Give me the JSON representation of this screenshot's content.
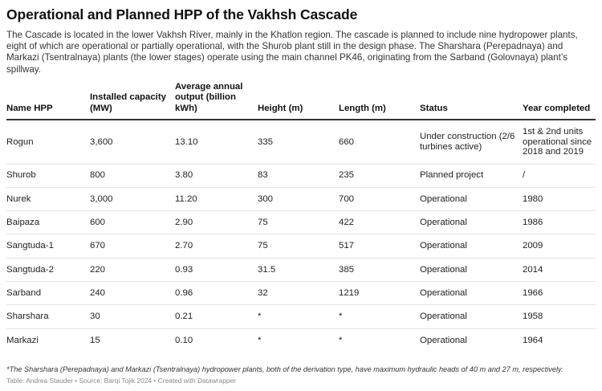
{
  "title": "Operational and Planned HPP of the Vakhsh Cascade",
  "description": "The Cascade is located in the lower Vakhsh River, mainly in the Khatlon region. The cascade is planned to include nine hydropower plants, eight of which are operational or partially operational, with the Shurob plant still in the design phase. The Sharshara (Perepadnaya) and Markazi (Tsentralnaya) plants (the lower stages) operate using the main channel PK46, originating from the Sarband (Golovnaya) plant’s spillway.",
  "columns": [
    "Name HPP",
    "Installed capacity (MW)",
    "Average annual output (billion kWh)",
    "Height (m)",
    "Length (m)",
    "Status",
    "Year completed"
  ],
  "rows": [
    [
      "Rogun",
      "3,600",
      "13.10",
      "335",
      "660",
      "Under construction (2/6 turbines active)",
      "1st & 2nd units operational since 2018 and 2019"
    ],
    [
      "Shurob",
      "800",
      "3.80",
      "83",
      "235",
      "Planned project",
      "/"
    ],
    [
      "Nurek",
      "3,000",
      "11.20",
      "300",
      "700",
      "Operational",
      "1980"
    ],
    [
      "Baipaza",
      "600",
      "2.90",
      "75",
      "422",
      "Operational",
      "1986"
    ],
    [
      "Sangtuda-1",
      "670",
      "2.70",
      "75",
      "517",
      "Operational",
      "2009"
    ],
    [
      "Sangtuda-2",
      "220",
      "0.93",
      "31.5",
      "385",
      "Operational",
      "2014"
    ],
    [
      "Sarband",
      "240",
      "0.96",
      "32",
      "1219",
      "Operational",
      "1966"
    ],
    [
      "Sharshara",
      "30",
      "0.21",
      "*",
      "*",
      "Operational",
      "1958"
    ],
    [
      "Markazi",
      "15",
      "0.10",
      "*",
      "*",
      "Operational",
      "1964"
    ]
  ],
  "footnote": "*The Sharshara (Perepadnaya) and Markazi (Tsentralnaya) hydropower plants, both of the derivation type, have maximum hydraulic heads of 40 m and 27 m, respectively.",
  "source": "Table: Andrea Stauder • Source: Barqi Tojik 2024 • Created with Datawrapper"
}
